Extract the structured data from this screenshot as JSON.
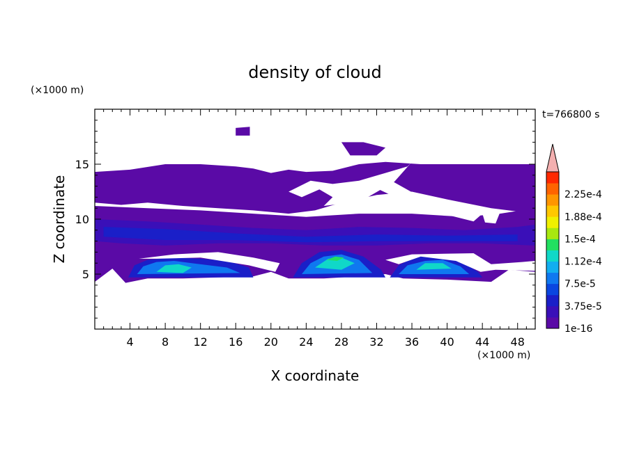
{
  "chart_data": {
    "type": "heatmap",
    "title": "density of cloud",
    "xlabel": "X coordinate",
    "ylabel": "Z coordinate",
    "x_unit": "(×1000 m)",
    "y_unit": "(×1000 m)",
    "time_label": "t=766800 s",
    "xlim": [
      0,
      50
    ],
    "ylim": [
      0,
      20
    ],
    "x_ticks": [
      4,
      8,
      12,
      16,
      20,
      24,
      28,
      32,
      36,
      40,
      44,
      48
    ],
    "y_ticks": [
      5,
      10,
      15
    ],
    "grid": false,
    "colorbar": {
      "levels": [
        {
          "value": "1e-16",
          "color": "#5a0aa6"
        },
        {
          "value": "",
          "color": "#3a0fb8"
        },
        {
          "value": "3.75e-5",
          "color": "#1a1fc8"
        },
        {
          "value": "",
          "color": "#0a46e0"
        },
        {
          "value": "7.5e-5",
          "color": "#0f78f0"
        },
        {
          "value": "",
          "color": "#12aef0"
        },
        {
          "value": "1.12e-4",
          "color": "#10d8c8"
        },
        {
          "value": "",
          "color": "#22e060"
        },
        {
          "value": "1.5e-4",
          "color": "#a8e810"
        },
        {
          "value": "",
          "color": "#f0f000"
        },
        {
          "value": "1.88e-4",
          "color": "#ffc800"
        },
        {
          "value": "",
          "color": "#ff9600"
        },
        {
          "value": "2.25e-4",
          "color": "#ff6400"
        },
        {
          "value": "",
          "color": "#ff2800"
        }
      ],
      "over_color": "#f4b0b0"
    },
    "regions": [
      {
        "name": "upper-layer",
        "level": 0,
        "points": [
          [
            0,
            14.3
          ],
          [
            4,
            14.5
          ],
          [
            8,
            15
          ],
          [
            12,
            15
          ],
          [
            16,
            14.8
          ],
          [
            18,
            14.6
          ],
          [
            20,
            14.2
          ],
          [
            22,
            14.5
          ],
          [
            24,
            14.3
          ],
          [
            27,
            14.4
          ],
          [
            30,
            15
          ],
          [
            33,
            15.2
          ],
          [
            37,
            15
          ],
          [
            41,
            15
          ],
          [
            45,
            15
          ],
          [
            50,
            15
          ],
          [
            50,
            10.5
          ],
          [
            45,
            11
          ],
          [
            40,
            11.8
          ],
          [
            36,
            12.5
          ],
          [
            32,
            12.2
          ],
          [
            28,
            11.5
          ],
          [
            25,
            10.8
          ],
          [
            22,
            10.5
          ],
          [
            18,
            10.8
          ],
          [
            14,
            11
          ],
          [
            10,
            11.2
          ],
          [
            6,
            11.5
          ],
          [
            3,
            11.3
          ],
          [
            0,
            11.5
          ]
        ]
      },
      {
        "name": "lower-layer",
        "level": 0,
        "points": [
          [
            0,
            11.2
          ],
          [
            6,
            11
          ],
          [
            12,
            10.8
          ],
          [
            18,
            10.5
          ],
          [
            24,
            10.2
          ],
          [
            30,
            10.5
          ],
          [
            36,
            10.5
          ],
          [
            42,
            10.2
          ],
          [
            46,
            10.5
          ],
          [
            50,
            11
          ],
          [
            50,
            5.2
          ],
          [
            47,
            5.4
          ],
          [
            45,
            4.3
          ],
          [
            40,
            4.5
          ],
          [
            35,
            4.6
          ],
          [
            33,
            5
          ],
          [
            30,
            4.8
          ],
          [
            26,
            4.6
          ],
          [
            22,
            4.6
          ],
          [
            20,
            5.2
          ],
          [
            18,
            4.8
          ],
          [
            14,
            4.7
          ],
          [
            10,
            4.6
          ],
          [
            6,
            4.6
          ],
          [
            3.5,
            4.2
          ],
          [
            2,
            5.5
          ],
          [
            0,
            4.3
          ]
        ]
      },
      {
        "name": "blob-top-1",
        "level": 0,
        "points": [
          [
            16,
            18.3
          ],
          [
            17.6,
            18.4
          ],
          [
            17.6,
            17.6
          ],
          [
            16,
            17.6
          ]
        ]
      },
      {
        "name": "blob-top-2",
        "level": 0,
        "points": [
          [
            28,
            17
          ],
          [
            30.5,
            17
          ],
          [
            33,
            16.5
          ],
          [
            32,
            15.8
          ],
          [
            29,
            15.8
          ]
        ]
      },
      {
        "name": "mid-band",
        "level": 1,
        "points": [
          [
            0,
            10
          ],
          [
            6,
            9.8
          ],
          [
            12,
            9.5
          ],
          [
            18,
            9.2
          ],
          [
            24,
            9
          ],
          [
            30,
            9.3
          ],
          [
            36,
            9.2
          ],
          [
            42,
            9
          ],
          [
            48,
            9.3
          ],
          [
            50,
            9.5
          ],
          [
            50,
            7.6
          ],
          [
            44,
            7.8
          ],
          [
            38,
            7.8
          ],
          [
            32,
            7.6
          ],
          [
            26,
            7.6
          ],
          [
            20,
            7.8
          ],
          [
            14,
            7.8
          ],
          [
            8,
            7.6
          ],
          [
            3,
            7.8
          ],
          [
            0,
            8
          ]
        ]
      },
      {
        "name": "mid-band-inner",
        "level": 2,
        "points": [
          [
            1,
            9.3
          ],
          [
            8,
            9.1
          ],
          [
            16,
            8.7
          ],
          [
            24,
            8.4
          ],
          [
            32,
            8.6
          ],
          [
            40,
            8.5
          ],
          [
            48,
            8.6
          ],
          [
            48,
            8
          ],
          [
            40,
            8
          ],
          [
            32,
            8
          ],
          [
            24,
            7.9
          ],
          [
            16,
            8.1
          ],
          [
            8,
            8.1
          ],
          [
            1,
            8.4
          ]
        ]
      },
      {
        "name": "dome-1-outer",
        "level": 2,
        "points": [
          [
            3.8,
            4.7
          ],
          [
            4.5,
            5.8
          ],
          [
            6,
            6.3
          ],
          [
            9,
            6.5
          ],
          [
            12,
            6.4
          ],
          [
            15,
            6.2
          ],
          [
            17.5,
            5.6
          ],
          [
            18,
            4.7
          ]
        ]
      },
      {
        "name": "dome-1-mid",
        "level": 4,
        "points": [
          [
            4.8,
            5
          ],
          [
            5.5,
            5.7
          ],
          [
            7,
            6.1
          ],
          [
            9,
            6.2
          ],
          [
            11,
            6
          ],
          [
            13,
            5.8
          ],
          [
            15,
            5.6
          ],
          [
            16.5,
            5.1
          ]
        ]
      },
      {
        "name": "dome-1-inner",
        "level": 6,
        "points": [
          [
            7,
            5.2
          ],
          [
            8,
            5.8
          ],
          [
            9.5,
            5.9
          ],
          [
            11,
            5.6
          ],
          [
            10,
            5.1
          ]
        ]
      },
      {
        "name": "dome-2-outer",
        "level": 2,
        "points": [
          [
            22.5,
            4.7
          ],
          [
            23.5,
            6
          ],
          [
            25.5,
            7
          ],
          [
            28,
            7.2
          ],
          [
            30.5,
            6.6
          ],
          [
            32.5,
            5.4
          ],
          [
            33,
            4.7
          ]
        ]
      },
      {
        "name": "dome-2-mid",
        "level": 4,
        "points": [
          [
            23.5,
            5
          ],
          [
            24.5,
            6
          ],
          [
            26,
            6.6
          ],
          [
            28,
            6.8
          ],
          [
            30,
            6.3
          ],
          [
            31.5,
            5.1
          ]
        ]
      },
      {
        "name": "dome-2-inner",
        "level": 6,
        "points": [
          [
            25,
            5.6
          ],
          [
            26.5,
            6.4
          ],
          [
            28,
            6.5
          ],
          [
            29.5,
            6
          ],
          [
            28,
            5.4
          ]
        ]
      },
      {
        "name": "dome-2-core",
        "level": 7,
        "points": [
          [
            26.3,
            6.3
          ],
          [
            27.3,
            6.6
          ],
          [
            28.3,
            6.5
          ],
          [
            27.5,
            6.2
          ]
        ]
      },
      {
        "name": "dome-3-outer",
        "level": 2,
        "points": [
          [
            33.5,
            4.7
          ],
          [
            34.5,
            5.8
          ],
          [
            36.5,
            6.6
          ],
          [
            39,
            6.7
          ],
          [
            41.5,
            6.2
          ],
          [
            43.5,
            5.2
          ],
          [
            44,
            4.7
          ]
        ]
      },
      {
        "name": "dome-3-mid",
        "level": 4,
        "points": [
          [
            34.5,
            5
          ],
          [
            35.5,
            5.8
          ],
          [
            37.5,
            6.2
          ],
          [
            39.5,
            6.3
          ],
          [
            41.5,
            5.7
          ],
          [
            42.5,
            5
          ]
        ]
      },
      {
        "name": "dome-3-inner",
        "level": 6,
        "points": [
          [
            36.5,
            5.4
          ],
          [
            37.5,
            6
          ],
          [
            39.5,
            6
          ],
          [
            40.5,
            5.5
          ]
        ]
      }
    ],
    "clear_regions": [
      {
        "name": "clear-hook",
        "points": [
          [
            22,
            12.5
          ],
          [
            24.5,
            13.5
          ],
          [
            27,
            13.2
          ],
          [
            30,
            13.5
          ],
          [
            33,
            14.2
          ],
          [
            35.5,
            14.8
          ],
          [
            36,
            15.2
          ],
          [
            34,
            13.4
          ],
          [
            31,
            12
          ],
          [
            28,
            11.4
          ],
          [
            26,
            11.2
          ],
          [
            27,
            12
          ],
          [
            25.5,
            12.7
          ],
          [
            23.5,
            12
          ]
        ]
      },
      {
        "name": "clear-notch-1",
        "points": [
          [
            33,
            13.8
          ],
          [
            37,
            12
          ],
          [
            42,
            10.6
          ],
          [
            44,
            10.5
          ],
          [
            43,
            9.8
          ],
          [
            40,
            10.4
          ],
          [
            36,
            11.3
          ],
          [
            32,
            12.8
          ]
        ]
      },
      {
        "name": "clear-notch-2",
        "points": [
          [
            44,
            10.5
          ],
          [
            46,
            10.6
          ],
          [
            45.5,
            9.6
          ],
          [
            44.3,
            9.7
          ]
        ]
      },
      {
        "name": "clear-gap",
        "points": [
          [
            5,
            6.4
          ],
          [
            9,
            6.8
          ],
          [
            14,
            7
          ],
          [
            18,
            6.5
          ],
          [
            21,
            6
          ],
          [
            20.5,
            5.2
          ],
          [
            17.5,
            5.8
          ],
          [
            12,
            6.5
          ],
          [
            7,
            6.4
          ]
        ]
      },
      {
        "name": "clear-gap-2",
        "points": [
          [
            33,
            6.3
          ],
          [
            36,
            6.8
          ],
          [
            43,
            6.9
          ],
          [
            45,
            5.9
          ],
          [
            48.5,
            6.1
          ],
          [
            50,
            6.2
          ],
          [
            50,
            5.3
          ],
          [
            45.5,
            5.4
          ],
          [
            43.8,
            5.2
          ],
          [
            41,
            6.2
          ],
          [
            37,
            6.6
          ],
          [
            34.5,
            5.9
          ]
        ]
      }
    ]
  }
}
